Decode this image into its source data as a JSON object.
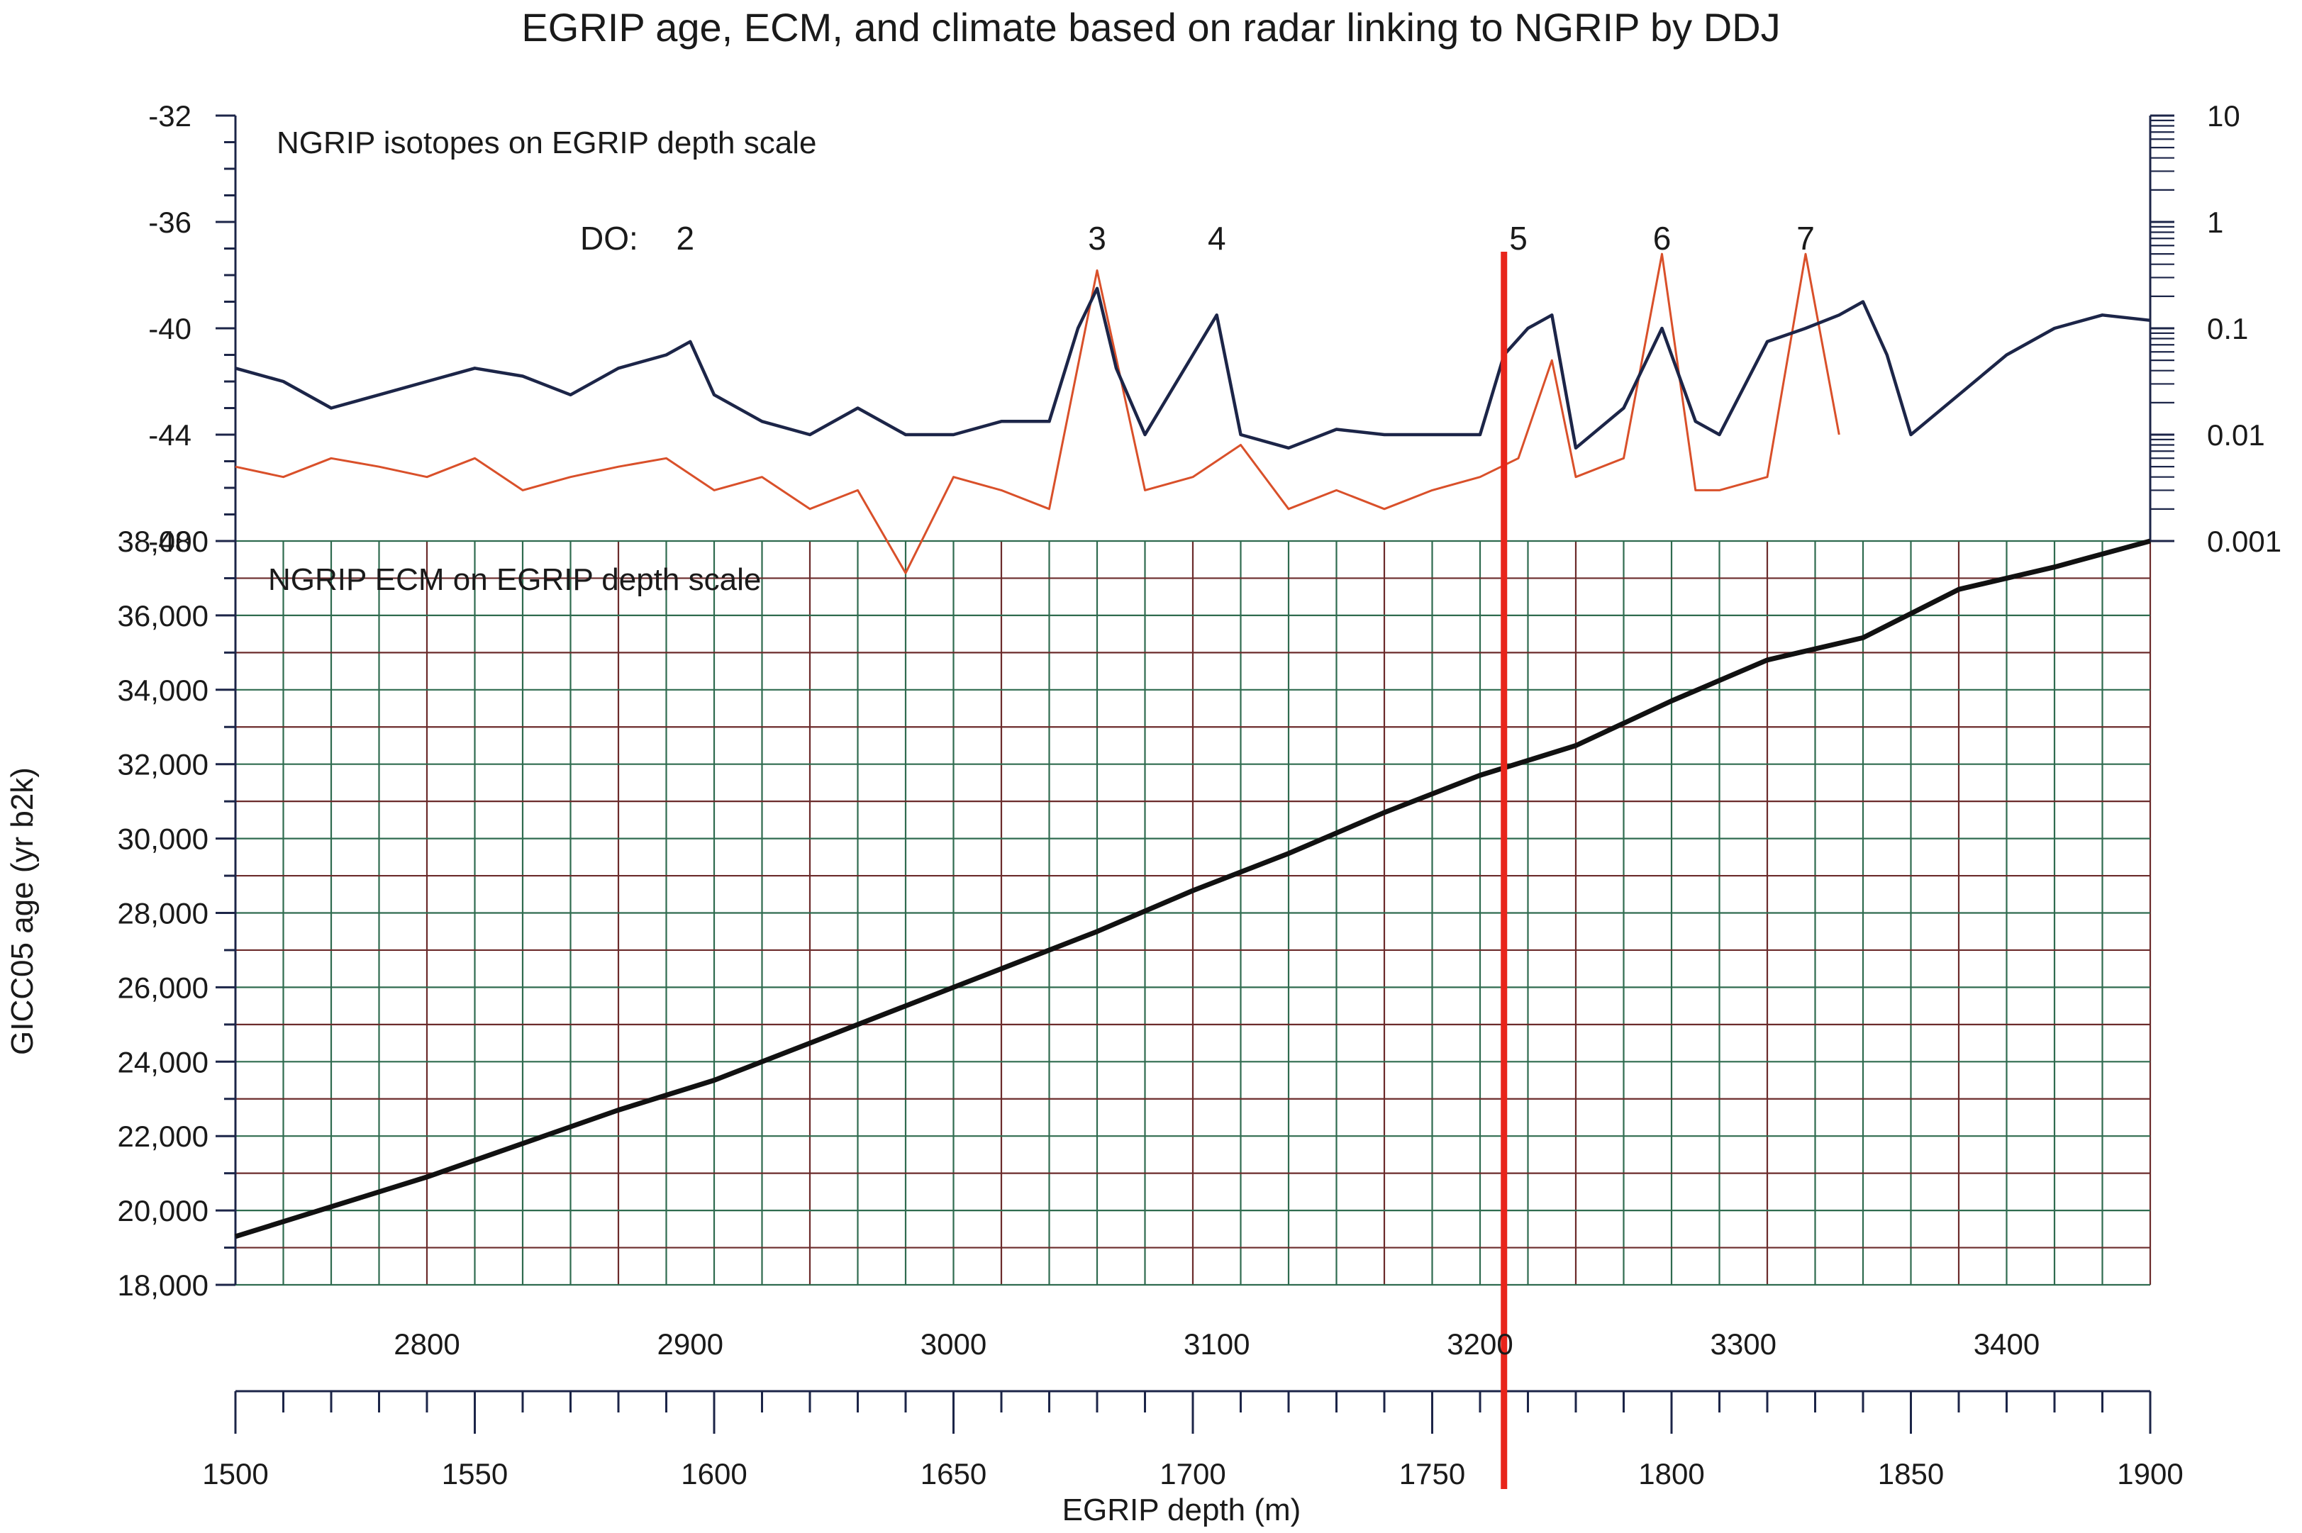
{
  "title": "EGRIP age, ECM, and climate based on radar linking to NGRIP by DDJ",
  "annotations": {
    "isotope_panel": "NGRIP isotopes on EGRIP depth scale",
    "ecm_panel": "NGRIP ECM on EGRIP depth scale",
    "do_prefix": "DO:"
  },
  "colors": {
    "isotope_line": "#1c2548",
    "ecm_line": "#d9502a",
    "age_line": "#111111",
    "marker_line": "#e8251b",
    "grid_green": "#2f6b4f",
    "grid_red": "#6b2b2b",
    "axis": "#1c2548"
  },
  "chart_data": {
    "type": "line",
    "title": "EGRIP age, ECM, and climate based on radar linking to NGRIP by DDJ",
    "ylabel": "GICC05 age (yr b2k)",
    "xlabel": "EGRIP depth (m)",
    "x_top_ticks": [
      "2800",
      "2900",
      "3000",
      "3100",
      "3200",
      "3300",
      "3400"
    ],
    "x_bottom_ticks": [
      "1500",
      "1550",
      "1600",
      "1650",
      "1700",
      "1750",
      "1800",
      "1850",
      "1900"
    ],
    "y_age_ticks": [
      "18,000",
      "20,000",
      "22,000",
      "24,000",
      "26,000",
      "28,000",
      "30,000",
      "32,000",
      "34,000",
      "36,000",
      "38,000"
    ],
    "y_isotope_ticks": [
      "-32",
      "-36",
      "-40",
      "-44",
      "-48"
    ],
    "y_ecm_ticks": [
      "10",
      "1",
      "0.1",
      "0.01",
      "0.001"
    ],
    "xlim_egrip_depth": [
      1500,
      1900
    ],
    "age_ylim": [
      18000,
      38000
    ],
    "isotope_ylim": [
      -48,
      -32
    ],
    "ecm_ylim_log": [
      0.001,
      10
    ],
    "grid": true,
    "do_events": [
      {
        "label": "2",
        "depth": 1591
      },
      {
        "label": "3",
        "depth": 1680
      },
      {
        "label": "4",
        "depth": 1705
      },
      {
        "label": "5",
        "depth": 1768
      },
      {
        "label": "6",
        "depth": 1798
      },
      {
        "label": "7",
        "depth": 1828
      }
    ],
    "marker_depth": 1765,
    "series": [
      {
        "name": "GICC05 age",
        "x": [
          1500,
          1520,
          1540,
          1560,
          1580,
          1600,
          1620,
          1640,
          1660,
          1680,
          1700,
          1720,
          1740,
          1760,
          1780,
          1790,
          1800,
          1820,
          1840,
          1860,
          1880,
          1900
        ],
        "y": [
          19300,
          20100,
          20900,
          21800,
          22700,
          23500,
          24500,
          25500,
          26500,
          27500,
          28600,
          29600,
          30700,
          31700,
          32500,
          33100,
          33700,
          34800,
          35400,
          36700,
          37300,
          38000
        ]
      },
      {
        "name": "NGRIP isotopes",
        "x": [
          1500,
          1510,
          1520,
          1530,
          1540,
          1550,
          1560,
          1570,
          1580,
          1590,
          1595,
          1600,
          1610,
          1620,
          1630,
          1640,
          1650,
          1660,
          1670,
          1676,
          1680,
          1684,
          1690,
          1700,
          1705,
          1710,
          1720,
          1730,
          1740,
          1750,
          1760,
          1765,
          1770,
          1775,
          1780,
          1790,
          1798,
          1805,
          1810,
          1820,
          1828,
          1835,
          1840,
          1845,
          1850,
          1860,
          1870,
          1880,
          1890,
          1900
        ],
        "y": [
          -41.5,
          -42,
          -43,
          -42.5,
          -42,
          -41.5,
          -41.8,
          -42.5,
          -41.5,
          -41,
          -40.5,
          -42.5,
          -43.5,
          -44,
          -43,
          -44,
          -44,
          -43.5,
          -43.5,
          -40,
          -38.5,
          -41.5,
          -44,
          -41,
          -39.5,
          -44,
          -44.5,
          -43.8,
          -44,
          -44,
          -44,
          -41,
          -40,
          -39.5,
          -44.5,
          -43,
          -40,
          -43.5,
          -44,
          -40.5,
          -40,
          -39.5,
          -39,
          -41,
          -44,
          -42.5,
          -41,
          -40,
          -39.5,
          -39.7
        ]
      },
      {
        "name": "NGRIP ECM",
        "x": [
          1500,
          1510,
          1520,
          1530,
          1540,
          1550,
          1560,
          1570,
          1580,
          1590,
          1600,
          1610,
          1620,
          1630,
          1640,
          1650,
          1660,
          1670,
          1680,
          1690,
          1700,
          1710,
          1720,
          1730,
          1740,
          1750,
          1760,
          1768,
          1775,
          1780,
          1790,
          1798,
          1805,
          1810,
          1820,
          1828,
          1835
        ],
        "y": [
          0.005,
          0.004,
          0.006,
          0.005,
          0.004,
          0.006,
          0.003,
          0.004,
          0.005,
          0.006,
          0.003,
          0.004,
          0.002,
          0.003,
          0.0005,
          0.004,
          0.003,
          0.002,
          0.35,
          0.003,
          0.004,
          0.008,
          0.002,
          0.003,
          0.002,
          0.003,
          0.004,
          0.006,
          0.05,
          0.004,
          0.006,
          0.5,
          0.003,
          0.003,
          0.004,
          0.5,
          0.01
        ]
      }
    ]
  }
}
